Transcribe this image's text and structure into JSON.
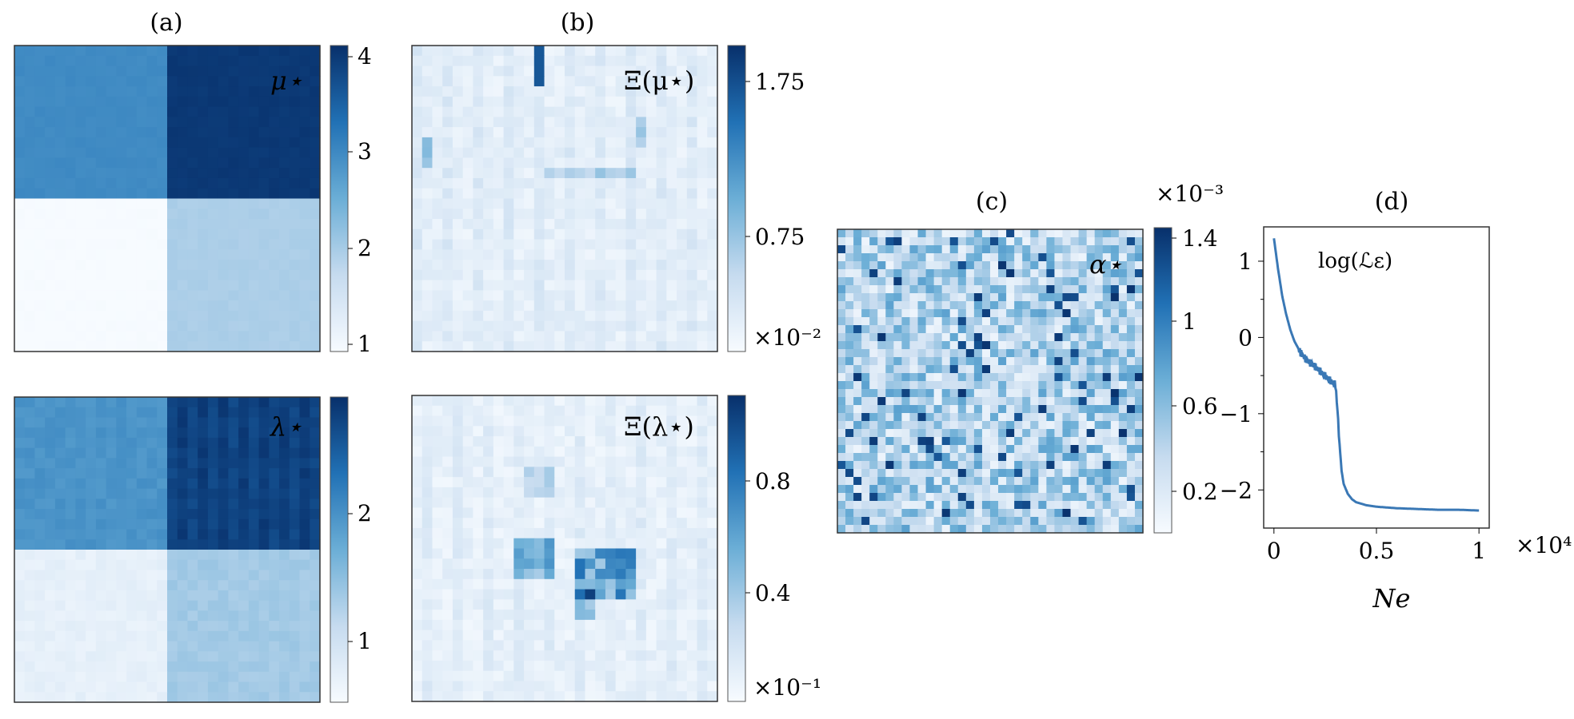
{
  "panel_labels": {
    "a": "(a)",
    "b": "(b)",
    "c": "(c)",
    "d": "(d)"
  },
  "annotations": {
    "mu": "μ⋆",
    "lambda": "λ⋆",
    "xi_mu": "Ξ(μ⋆)",
    "xi_lambda": "Ξ(λ⋆)",
    "alpha": "α⋆",
    "loss": "log(ℒε)",
    "xlabel_d": "Ne"
  },
  "colorbars": {
    "mu": {
      "ticks": [
        "4",
        "3",
        "2",
        "1"
      ],
      "range": [
        1,
        4.1
      ]
    },
    "lambda": {
      "ticks": [
        "2",
        "1"
      ],
      "range": [
        0.5,
        2.8
      ]
    },
    "xi_mu": {
      "ticks": [
        "1.75",
        "0.75"
      ],
      "multiplier": "×10⁻²",
      "range": [
        0,
        2.0
      ]
    },
    "xi_lambda": {
      "ticks": [
        "0.8",
        "0.4"
      ],
      "multiplier": "×10⁻¹",
      "range": [
        0,
        1.05
      ]
    },
    "alpha": {
      "ticks": [
        "1.4",
        "1",
        "0.6",
        "0.2"
      ],
      "multiplier": "×10⁻³",
      "range": [
        0,
        1.5
      ]
    }
  },
  "colors": {
    "low": "#f7fbff",
    "mid": "#6baed6",
    "high": "#08306b",
    "line": "#3a78b5"
  },
  "chart_data": [
    {
      "type": "heatmap",
      "panel": "(a) top",
      "label": "μ⋆",
      "description": "2x2 block field: top-left ≈3, top-right ≈4, bottom-left ≈1, bottom-right ≈2",
      "blocks": [
        [
          3.0,
          4.0
        ],
        [
          1.0,
          2.0
        ]
      ]
    },
    {
      "type": "heatmap",
      "panel": "(a) bottom",
      "label": "λ⋆",
      "blocks": [
        [
          1.9,
          2.6
        ],
        [
          0.7,
          1.3
        ]
      ]
    },
    {
      "type": "heatmap",
      "panel": "(b) top",
      "label": "Ξ(μ⋆)",
      "colorbar_multiplier": "×10⁻²"
    },
    {
      "type": "heatmap",
      "panel": "(b) bottom",
      "label": "Ξ(λ⋆)",
      "colorbar_multiplier": "×10⁻¹"
    },
    {
      "type": "heatmap",
      "panel": "(c)",
      "label": "α⋆",
      "colorbar_multiplier": "×10⁻³"
    },
    {
      "type": "line",
      "panel": "(d)",
      "label": "log(ℒε)",
      "xlabel": "Ne",
      "x_multiplier": "×10⁴",
      "xticks": [
        "0",
        "0.5",
        "1"
      ],
      "yticks": [
        "1",
        "0",
        "−1",
        "−2"
      ],
      "xlim": [
        -0.05,
        1.05
      ],
      "ylim": [
        -2.5,
        1.45
      ],
      "x": [
        0,
        0.01,
        0.02,
        0.04,
        0.06,
        0.08,
        0.1,
        0.13,
        0.16,
        0.2,
        0.24,
        0.28,
        0.3,
        0.31,
        0.32,
        0.33,
        0.34,
        0.36,
        0.38,
        0.4,
        0.45,
        0.5,
        0.6,
        0.7,
        0.8,
        0.9,
        1.0
      ],
      "y": [
        1.3,
        1.1,
        0.9,
        0.55,
        0.3,
        0.1,
        -0.05,
        -0.2,
        -0.3,
        -0.38,
        -0.48,
        -0.58,
        -0.62,
        -0.95,
        -1.4,
        -1.75,
        -1.92,
        -2.05,
        -2.12,
        -2.16,
        -2.2,
        -2.22,
        -2.24,
        -2.25,
        -2.26,
        -2.26,
        -2.27
      ]
    }
  ]
}
